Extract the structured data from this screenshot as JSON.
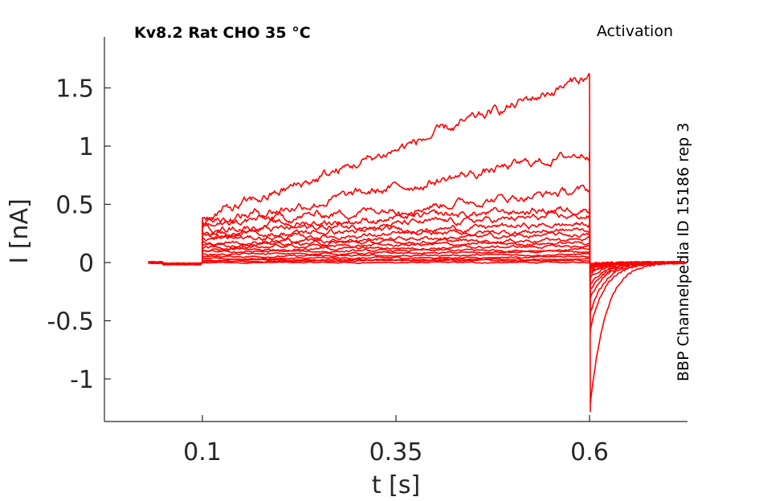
{
  "chart_data": {
    "type": "line",
    "title": "Kv8.2  Rat  CHO  35 °C",
    "subtitle": "Activation",
    "side_label": "BBP Channelpedia ID 15186 rep 3",
    "xlabel": "t [s]",
    "ylabel": "I [nA]",
    "xlim": [
      0,
      0.75
    ],
    "ylim": [
      -1.4,
      1.9
    ],
    "xticks": [
      0.1,
      0.35,
      0.6
    ],
    "xtick_labels": [
      "0.1",
      "0.35",
      "0.6"
    ],
    "yticks": [
      -1,
      -0.5,
      0,
      0.5,
      1,
      1.5
    ],
    "ytick_labels": [
      "-1",
      "-0.5",
      "0",
      "0.5",
      "1",
      "1.5"
    ],
    "grid": false,
    "line_color": "#ff0000",
    "stimulus": {
      "start": 0.1,
      "end": 0.6,
      "recording_start": 0.03,
      "recording_end": 0.725
    },
    "series": [
      {
        "values": {
          "onset": 0.0,
          "end": 0.0,
          "tail": -0.01
        }
      },
      {
        "values": {
          "onset": 0.01,
          "end": 0.02,
          "tail": -0.01
        }
      },
      {
        "values": {
          "onset": 0.02,
          "end": 0.03,
          "tail": -0.02
        }
      },
      {
        "values": {
          "onset": 0.03,
          "end": 0.05,
          "tail": -0.02
        }
      },
      {
        "values": {
          "onset": 0.05,
          "end": 0.07,
          "tail": -0.03
        }
      },
      {
        "values": {
          "onset": 0.07,
          "end": 0.09,
          "tail": -0.03
        }
      },
      {
        "values": {
          "onset": 0.09,
          "end": 0.11,
          "tail": -0.04
        }
      },
      {
        "values": {
          "onset": 0.11,
          "end": 0.14,
          "tail": -0.05
        }
      },
      {
        "values": {
          "onset": 0.13,
          "end": 0.17,
          "tail": -0.06
        }
      },
      {
        "values": {
          "onset": 0.15,
          "end": 0.2,
          "tail": -0.08
        }
      },
      {
        "values": {
          "onset": 0.17,
          "end": 0.24,
          "tail": -0.1
        }
      },
      {
        "values": {
          "onset": 0.2,
          "end": 0.28,
          "tail": -0.14
        }
      },
      {
        "values": {
          "onset": 0.23,
          "end": 0.33,
          "tail": -0.2
        }
      },
      {
        "values": {
          "onset": 0.26,
          "end": 0.4,
          "tail": -0.25
        }
      },
      {
        "values": {
          "onset": 0.29,
          "end": 0.47,
          "tail": -0.32
        }
      },
      {
        "values": {
          "onset": 0.32,
          "end": 0.62,
          "tail": -0.45
        }
      },
      {
        "values": {
          "onset": 0.35,
          "end": 0.95,
          "tail": -0.6
        }
      },
      {
        "values": {
          "onset": 0.38,
          "end": 1.6,
          "tail": -1.28
        }
      }
    ]
  }
}
